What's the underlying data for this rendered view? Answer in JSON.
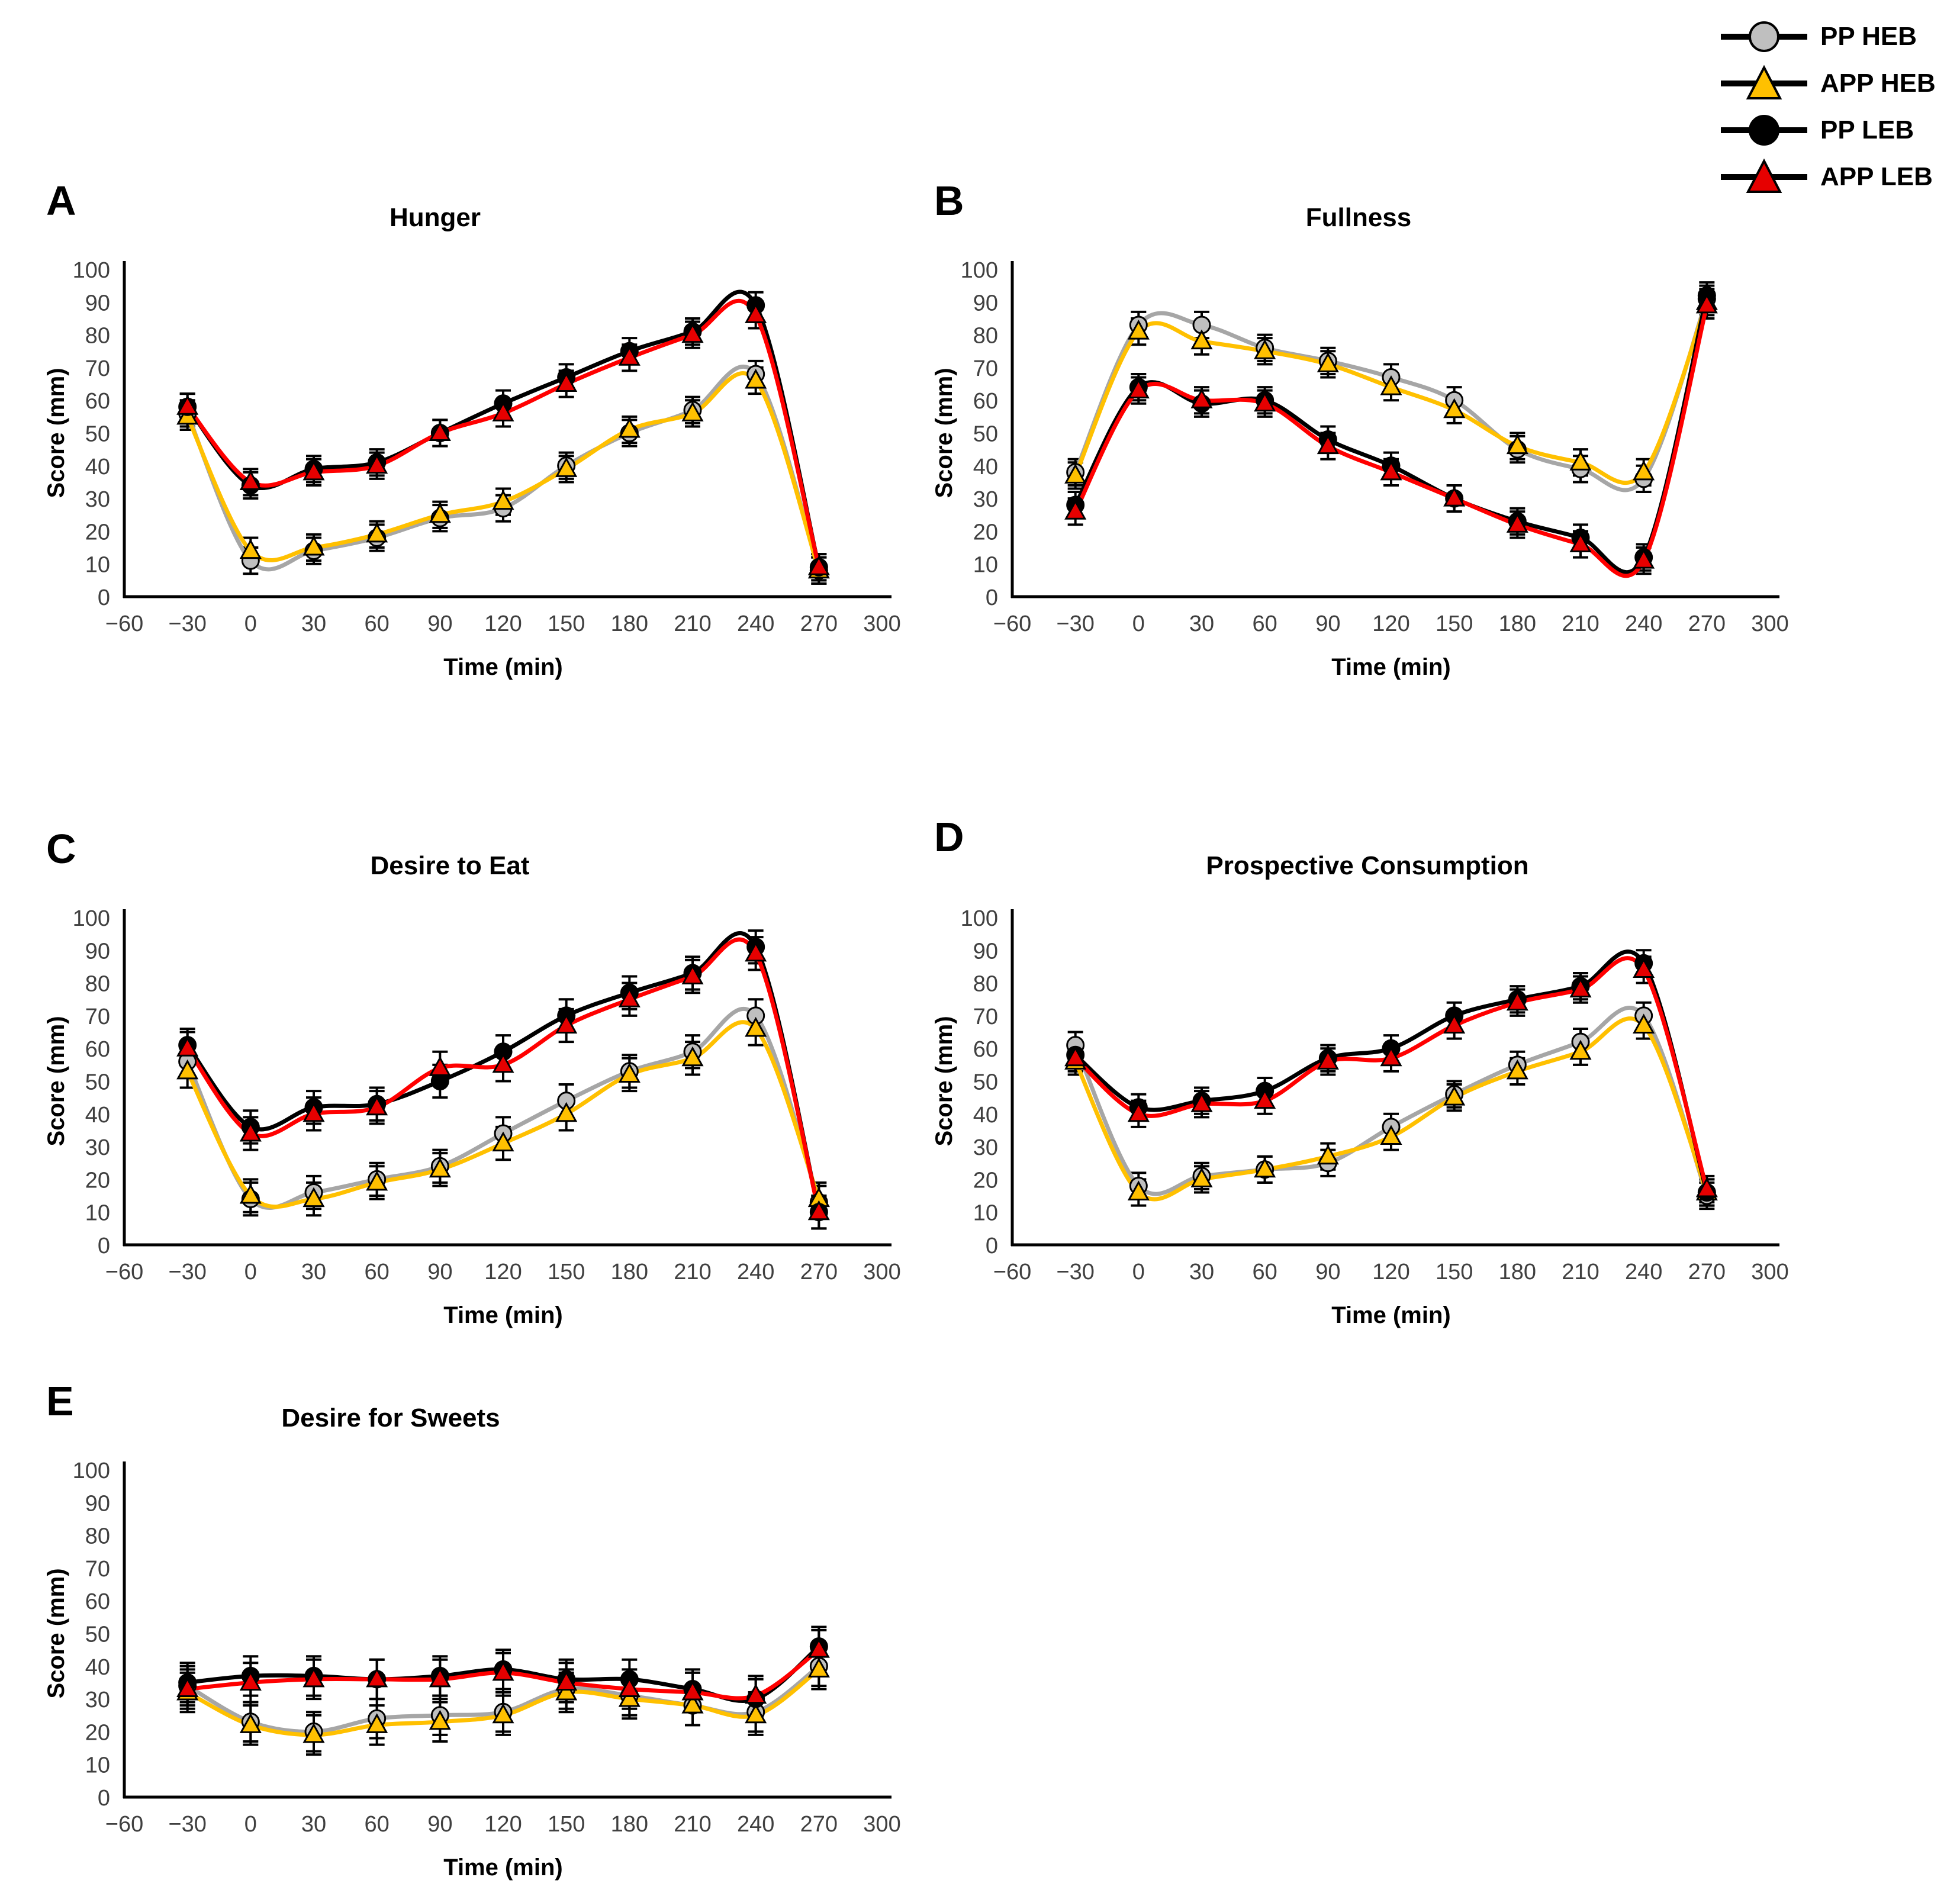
{
  "legend": {
    "items": [
      {
        "label": "PP HEB",
        "marker": "circle",
        "fill": "#bfbfbf",
        "line_color": "#a6a6a6"
      },
      {
        "label": "APP HEB",
        "marker": "triangle",
        "fill": "#ffc000",
        "line_color": "#ffc000"
      },
      {
        "label": "PP LEB",
        "marker": "circle",
        "fill": "#000000",
        "line_color": "#000000"
      },
      {
        "label": "APP LEB",
        "marker": "triangle",
        "fill": "#e60000",
        "line_color": "#ff0000"
      }
    ]
  },
  "axes": {
    "x_ticks": [
      "−60",
      "−30",
      "0",
      "30",
      "60",
      "90",
      "120",
      "150",
      "180",
      "210",
      "240",
      "270",
      "300"
    ],
    "y_ticks": [
      "0",
      "10",
      "20",
      "30",
      "40",
      "50",
      "60",
      "70",
      "80",
      "90",
      "100"
    ]
  },
  "chart_data": [
    {
      "panel": "A",
      "type": "line",
      "title": "Hunger",
      "xlabel": "Time (min)",
      "ylabel": "Score (mm)",
      "ylim": [
        0,
        100
      ],
      "xlim": [
        -60,
        300
      ],
      "grid": false,
      "error_bar": 4,
      "x": [
        -30,
        0,
        30,
        60,
        90,
        120,
        150,
        180,
        210,
        240,
        270
      ],
      "series": [
        {
          "name": "PP HEB",
          "marker": "circle",
          "line_color": "#a6a6a6",
          "fill": "#bfbfbf",
          "values": [
            56,
            11,
            14,
            18,
            24,
            27,
            40,
            50,
            57,
            68,
            8
          ]
        },
        {
          "name": "APP HEB",
          "marker": "triangle",
          "line_color": "#ffc000",
          "fill": "#ffc000",
          "values": [
            55,
            14,
            15,
            19,
            25,
            29,
            39,
            51,
            56,
            66,
            8
          ]
        },
        {
          "name": "PP LEB",
          "marker": "circle",
          "line_color": "#000000",
          "fill": "#000000",
          "values": [
            58,
            34,
            39,
            41,
            50,
            59,
            67,
            75,
            81,
            89,
            9
          ]
        },
        {
          "name": "APP LEB",
          "marker": "triangle",
          "line_color": "#ff0000",
          "fill": "#e60000",
          "values": [
            58,
            35,
            38,
            40,
            50,
            56,
            65,
            73,
            80,
            86,
            9
          ]
        }
      ]
    },
    {
      "panel": "B",
      "type": "line",
      "title": "Fullness",
      "xlabel": "Time (min)",
      "ylabel": "Score (mm)",
      "ylim": [
        0,
        100
      ],
      "xlim": [
        -60,
        300
      ],
      "grid": false,
      "error_bar": 4,
      "x": [
        -30,
        0,
        30,
        60,
        90,
        120,
        150,
        180,
        210,
        240,
        270
      ],
      "series": [
        {
          "name": "PP HEB",
          "marker": "circle",
          "line_color": "#a6a6a6",
          "fill": "#bfbfbf",
          "values": [
            38,
            83,
            83,
            76,
            72,
            67,
            60,
            45,
            39,
            36,
            91
          ]
        },
        {
          "name": "APP HEB",
          "marker": "triangle",
          "line_color": "#ffc000",
          "fill": "#ffc000",
          "values": [
            37,
            81,
            78,
            75,
            71,
            64,
            57,
            46,
            41,
            38,
            90
          ]
        },
        {
          "name": "PP LEB",
          "marker": "circle",
          "line_color": "#000000",
          "fill": "#000000",
          "values": [
            28,
            64,
            59,
            60,
            48,
            40,
            30,
            23,
            18,
            12,
            92
          ]
        },
        {
          "name": "APP LEB",
          "marker": "triangle",
          "line_color": "#ff0000",
          "fill": "#e60000",
          "values": [
            26,
            63,
            60,
            59,
            46,
            38,
            30,
            22,
            16,
            11,
            89
          ]
        }
      ]
    },
    {
      "panel": "C",
      "type": "line",
      "title": "Desire to Eat",
      "xlabel": "Time  (min)",
      "ylabel": "Score (mm)",
      "ylim": [
        0,
        100
      ],
      "xlim": [
        -60,
        300
      ],
      "grid": false,
      "error_bar": 5,
      "x": [
        -30,
        0,
        30,
        60,
        90,
        120,
        150,
        180,
        210,
        240,
        270
      ],
      "series": [
        {
          "name": "PP HEB",
          "marker": "circle",
          "line_color": "#a6a6a6",
          "fill": "#bfbfbf",
          "values": [
            56,
            14,
            16,
            20,
            24,
            34,
            44,
            53,
            59,
            70,
            13
          ]
        },
        {
          "name": "APP HEB",
          "marker": "triangle",
          "line_color": "#ffc000",
          "fill": "#ffc000",
          "values": [
            53,
            15,
            14,
            19,
            23,
            31,
            40,
            52,
            57,
            66,
            14
          ]
        },
        {
          "name": "PP LEB",
          "marker": "circle",
          "line_color": "#000000",
          "fill": "#000000",
          "values": [
            61,
            36,
            42,
            43,
            50,
            59,
            70,
            77,
            83,
            91,
            10
          ]
        },
        {
          "name": "APP LEB",
          "marker": "triangle",
          "line_color": "#ff0000",
          "fill": "#e60000",
          "values": [
            60,
            34,
            40,
            42,
            54,
            55,
            67,
            75,
            82,
            89,
            10
          ]
        }
      ]
    },
    {
      "panel": "D",
      "type": "line",
      "title": "Prospective Consumption",
      "xlabel": "Time  (min)",
      "ylabel": "Score (mm)",
      "ylim": [
        0,
        100
      ],
      "xlim": [
        -60,
        300
      ],
      "grid": false,
      "error_bar": 4,
      "x": [
        -30,
        0,
        30,
        60,
        90,
        120,
        150,
        180,
        210,
        240,
        270
      ],
      "series": [
        {
          "name": "PP HEB",
          "marker": "circle",
          "line_color": "#a6a6a6",
          "fill": "#bfbfbf",
          "values": [
            61,
            18,
            21,
            23,
            25,
            36,
            46,
            55,
            62,
            70,
            15
          ]
        },
        {
          "name": "APP HEB",
          "marker": "triangle",
          "line_color": "#ffc000",
          "fill": "#ffc000",
          "values": [
            56,
            16,
            20,
            23,
            27,
            33,
            45,
            53,
            59,
            67,
            16
          ]
        },
        {
          "name": "PP LEB",
          "marker": "circle",
          "line_color": "#000000",
          "fill": "#000000",
          "values": [
            58,
            42,
            44,
            47,
            57,
            60,
            70,
            75,
            79,
            86,
            16
          ]
        },
        {
          "name": "APP LEB",
          "marker": "triangle",
          "line_color": "#ff0000",
          "fill": "#e60000",
          "values": [
            57,
            40,
            43,
            44,
            56,
            57,
            67,
            74,
            78,
            84,
            17
          ]
        }
      ]
    },
    {
      "panel": "E",
      "type": "line",
      "title": "Desire for Sweets",
      "xlabel": "Time (min)",
      "ylabel": "Score (mm)",
      "ylim": [
        0,
        100
      ],
      "xlim": [
        -60,
        300
      ],
      "grid": false,
      "error_bar": 6,
      "x": [
        -30,
        0,
        30,
        60,
        90,
        120,
        150,
        180,
        210,
        240,
        270
      ],
      "series": [
        {
          "name": "PP HEB",
          "marker": "circle",
          "line_color": "#a6a6a6",
          "fill": "#bfbfbf",
          "values": [
            34,
            23,
            20,
            24,
            25,
            26,
            33,
            31,
            28,
            26,
            40
          ]
        },
        {
          "name": "APP HEB",
          "marker": "triangle",
          "line_color": "#ffc000",
          "fill": "#ffc000",
          "values": [
            32,
            22,
            19,
            22,
            23,
            25,
            32,
            30,
            28,
            25,
            39
          ]
        },
        {
          "name": "PP LEB",
          "marker": "circle",
          "line_color": "#000000",
          "fill": "#000000",
          "values": [
            35,
            37,
            37,
            36,
            37,
            39,
            36,
            36,
            33,
            30,
            46
          ]
        },
        {
          "name": "APP LEB",
          "marker": "triangle",
          "line_color": "#ff0000",
          "fill": "#e60000",
          "values": [
            33,
            35,
            36,
            36,
            36,
            38,
            35,
            33,
            32,
            31,
            45
          ]
        }
      ]
    }
  ]
}
